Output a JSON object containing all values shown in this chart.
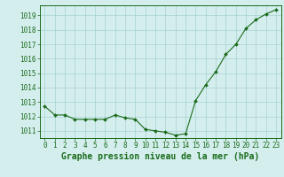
{
  "x": [
    0,
    1,
    2,
    3,
    4,
    5,
    6,
    7,
    8,
    9,
    10,
    11,
    12,
    13,
    14,
    15,
    16,
    17,
    18,
    19,
    20,
    21,
    22,
    23
  ],
  "y": [
    1012.7,
    1012.1,
    1012.1,
    1011.8,
    1011.8,
    1011.8,
    1011.8,
    1012.1,
    1011.9,
    1011.8,
    1011.1,
    1011.0,
    1010.9,
    1010.7,
    1010.8,
    1013.1,
    1014.2,
    1015.1,
    1016.3,
    1017.0,
    1018.1,
    1018.7,
    1019.1,
    1019.4
  ],
  "line_color": "#1a6b1a",
  "marker": "D",
  "marker_size": 2.0,
  "bg_color": "#d4eeee",
  "grid_color": "#a8d0d0",
  "tick_color": "#1a6b1a",
  "label_color": "#1a6b1a",
  "xlabel": "Graphe pression niveau de la mer (hPa)",
  "xlabel_fontsize": 7.0,
  "ylim": [
    1010.5,
    1019.7
  ],
  "yticks": [
    1011,
    1012,
    1013,
    1014,
    1015,
    1016,
    1017,
    1018,
    1019
  ],
  "xticks": [
    0,
    1,
    2,
    3,
    4,
    5,
    6,
    7,
    8,
    9,
    10,
    11,
    12,
    13,
    14,
    15,
    16,
    17,
    18,
    19,
    20,
    21,
    22,
    23
  ],
  "tick_fontsize": 5.5,
  "linewidth": 0.8
}
